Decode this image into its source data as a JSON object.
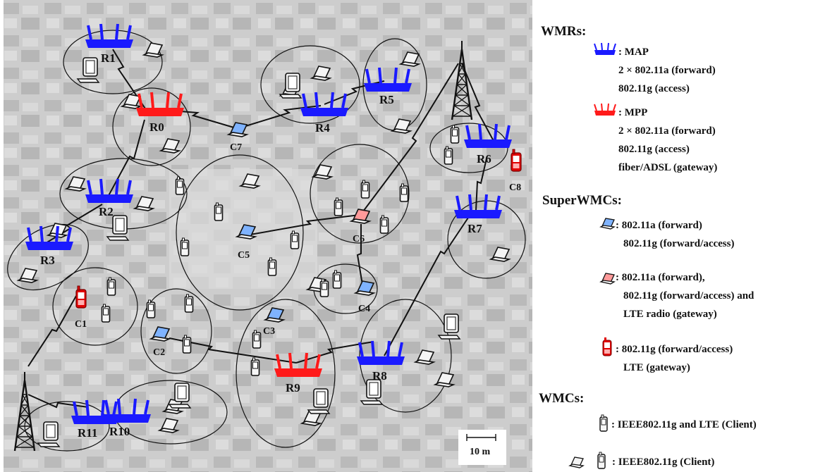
{
  "map": {
    "scale_label": "10 m",
    "routers": [
      {
        "id": "R0",
        "label": "R0",
        "type": "MPP"
      },
      {
        "id": "R1",
        "label": "R1",
        "type": "MAP"
      },
      {
        "id": "R2",
        "label": "R2",
        "type": "MAP"
      },
      {
        "id": "R3",
        "label": "R3",
        "type": "MAP"
      },
      {
        "id": "R4",
        "label": "R4",
        "type": "MAP"
      },
      {
        "id": "R5",
        "label": "R5",
        "type": "MAP"
      },
      {
        "id": "R6",
        "label": "R6",
        "type": "MAP"
      },
      {
        "id": "R7",
        "label": "R7",
        "type": "MAP"
      },
      {
        "id": "R8",
        "label": "R8",
        "type": "MAP"
      },
      {
        "id": "R9",
        "label": "R9",
        "type": "MPP"
      },
      {
        "id": "R10",
        "label": "R10",
        "type": "MAP"
      },
      {
        "id": "R11",
        "label": "R11",
        "type": "MAP"
      }
    ],
    "super_clients": [
      {
        "id": "C1",
        "label": "C1",
        "type": "lte-phone"
      },
      {
        "id": "C2",
        "label": "C2",
        "type": "laptop-blue"
      },
      {
        "id": "C3",
        "label": "C3",
        "type": "laptop-blue"
      },
      {
        "id": "C4",
        "label": "C4",
        "type": "laptop-blue"
      },
      {
        "id": "C5",
        "label": "C5",
        "type": "laptop-blue"
      },
      {
        "id": "C6",
        "label": "C6",
        "type": "laptop-red"
      },
      {
        "id": "C7",
        "label": "C7",
        "type": "laptop-blue"
      },
      {
        "id": "C8",
        "label": "C8",
        "type": "lte-phone"
      }
    ]
  },
  "legend": {
    "wmrs_title": "WMRs:",
    "map_lines": [
      ": MAP",
      "2 × 802.11a (forward)",
      "802.11g (access)"
    ],
    "mpp_lines": [
      ": MPP",
      "2 × 802.11a (forward)",
      "802.11g (access)",
      "fiber/ADSL (gateway)"
    ],
    "superwmcs_title": "SuperWMCs:",
    "sw1_lines": [
      ": 802.11a (forward)",
      "802.11g (forward/access)"
    ],
    "sw2_lines": [
      ": 802.11a (forward),",
      "802.11g (forward/access) and",
      "LTE radio (gateway)"
    ],
    "sw3_lines": [
      ": 802.11g (forward/access)",
      "LTE (gateway)"
    ],
    "wmcs_title": "WMCs:",
    "wmc1_label": ": IEEE802.11g and LTE (Client)",
    "wmc2_label": ": IEEE802.11g (Client)"
  },
  "colors": {
    "map_router": "#1a1aff",
    "mpp_router": "#ff1a1a",
    "laptop_blue": "#7fb3ff",
    "laptop_red": "#ff9a9a",
    "lte_phone": "#e00000"
  }
}
